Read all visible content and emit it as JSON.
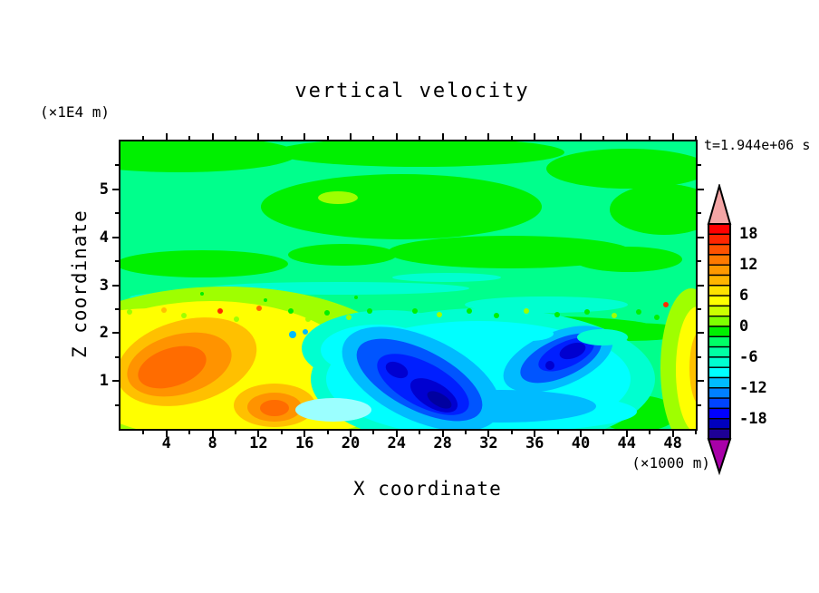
{
  "title": "vertical velocity",
  "time_label": "t=1.944e+06 s",
  "y_axis": {
    "label": "Z coordinate",
    "unit": "(×1E4 m)",
    "min": 0,
    "max": 6,
    "majors": [
      1,
      2,
      3,
      4,
      5
    ],
    "minors": [
      0.5,
      1.5,
      2.5,
      3.5,
      4.5,
      5.5
    ]
  },
  "x_axis": {
    "label": "X coordinate",
    "unit": "(×1000 m)",
    "min": 0,
    "max": 50,
    "majors": [
      4,
      8,
      12,
      16,
      20,
      24,
      28,
      32,
      36,
      40,
      44,
      48
    ],
    "minors": [
      2,
      6,
      10,
      14,
      18,
      22,
      26,
      30,
      34,
      38,
      42,
      46,
      50
    ]
  },
  "colorbar": {
    "labels": [
      "18",
      "12",
      "6",
      "0",
      "-6",
      "-12",
      "-18"
    ],
    "top_arrow_color": "#F4A5A5",
    "bottom_arrow_color": "#A800A8",
    "band_colors": [
      "#FF0000",
      "#FF2600",
      "#FF5200",
      "#FF7A00",
      "#FF9900",
      "#FFB500",
      "#FFE200",
      "#FFFF00",
      "#CCFF00",
      "#7FFF00",
      "#00F000",
      "#00FF66",
      "#00FFA3",
      "#00FFD0",
      "#00FFFF",
      "#00BBFF",
      "#0080FF",
      "#0044FF",
      "#0000FF",
      "#0000BE",
      "#1E0096"
    ]
  },
  "chart_data": {
    "type": "filled_contour",
    "title": "vertical velocity",
    "time_annotation": "t=1.944e+06 s",
    "xlabel": "X coordinate",
    "x_unit": "(×1000 m)",
    "xlim": [
      0,
      50
    ],
    "x_major_ticks": [
      4,
      8,
      12,
      16,
      20,
      24,
      28,
      32,
      36,
      40,
      44,
      48
    ],
    "ylabel": "Z coordinate",
    "y_unit": "(×1E4 m)",
    "ylim": [
      0,
      6
    ],
    "y_major_ticks": [
      1,
      2,
      3,
      4,
      5
    ],
    "colorbar_labeled_levels": [
      18,
      12,
      6,
      0,
      -6,
      -12,
      -18
    ],
    "contour_interval": 2,
    "palette": "rainbow: red/orange = strong positive, yellow/green = weakly positive, spring-green/cyan = weakly negative, blue/navy = strong negative",
    "features": [
      {
        "feature": "main updraft plume",
        "x_range": [
          0,
          18
        ],
        "z_range": [
          0,
          2.0
        ],
        "peak_level": "about +14"
      },
      {
        "feature": "secondary updraft core",
        "x_range": [
          11,
          17
        ],
        "z_range": [
          0,
          0.8
        ],
        "peak_level": "about +12"
      },
      {
        "feature": "main downdraft (tilted)",
        "x_range": [
          20,
          32
        ],
        "z_range": [
          0.2,
          1.8
        ],
        "peak_level": "about -18"
      },
      {
        "feature": "secondary downdraft",
        "x_range": [
          34,
          41
        ],
        "z_range": [
          0.8,
          1.8
        ],
        "peak_level": "about -14"
      },
      {
        "feature": "right-edge updraft column",
        "x_range": [
          47,
          50
        ],
        "z_range": [
          0.2,
          2.0
        ],
        "peak_level": "about +12"
      },
      {
        "feature": "quiescent upper layer with weak green bands",
        "x_range": [
          0,
          50
        ],
        "z_range": [
          2,
          6
        ],
        "peak_level": "within ±2"
      },
      {
        "feature": "turbulent speckled interface",
        "x_range": [
          0,
          50
        ],
        "z_range": [
          1.9,
          2.3
        ],
        "peak_level": "mixed ±4"
      }
    ]
  }
}
